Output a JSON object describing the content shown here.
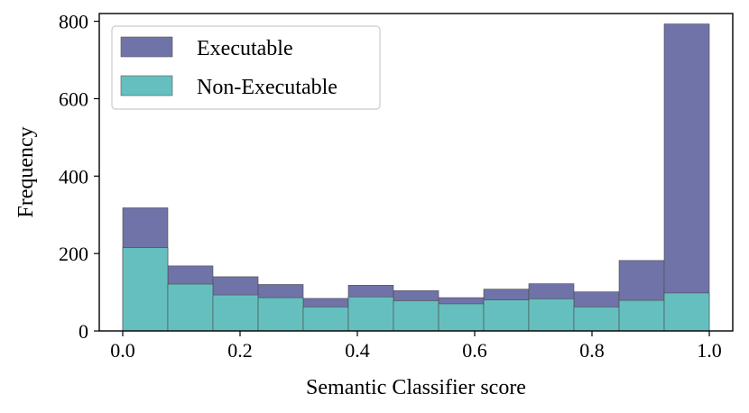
{
  "chart_data": {
    "type": "bar",
    "title": "",
    "xlabel": "Semantic Classifier score",
    "ylabel": "Frequency",
    "xlim": [
      -0.04,
      1.04
    ],
    "ylim": [
      0,
      820
    ],
    "bin_edges": [
      0.0,
      0.0769,
      0.1538,
      0.2308,
      0.3077,
      0.3846,
      0.4615,
      0.5385,
      0.6154,
      0.6923,
      0.7692,
      0.8462,
      0.9231,
      1.0
    ],
    "series": [
      {
        "name": "Executable",
        "color": "#6f73a8",
        "values": [
          318,
          168,
          140,
          120,
          84,
          118,
          104,
          86,
          108,
          122,
          101,
          182,
          793
        ]
      },
      {
        "name": "Non-Executable",
        "color": "#66bfbf",
        "values": [
          215,
          121,
          93,
          86,
          62,
          88,
          78,
          70,
          80,
          83,
          62,
          79,
          98
        ]
      }
    ],
    "x_ticks": [
      {
        "value": 0.0,
        "label": "0.0"
      },
      {
        "value": 0.2,
        "label": "0.2"
      },
      {
        "value": 0.4,
        "label": "0.4"
      },
      {
        "value": 0.6,
        "label": "0.6"
      },
      {
        "value": 0.8,
        "label": "0.8"
      },
      {
        "value": 1.0,
        "label": "1.0"
      }
    ],
    "y_ticks": [
      {
        "value": 0,
        "label": "0"
      },
      {
        "value": 200,
        "label": "200"
      },
      {
        "value": 400,
        "label": "400"
      },
      {
        "value": 600,
        "label": "600"
      },
      {
        "value": 800,
        "label": "800"
      }
    ],
    "legend_position": "top-left",
    "grid": false
  }
}
